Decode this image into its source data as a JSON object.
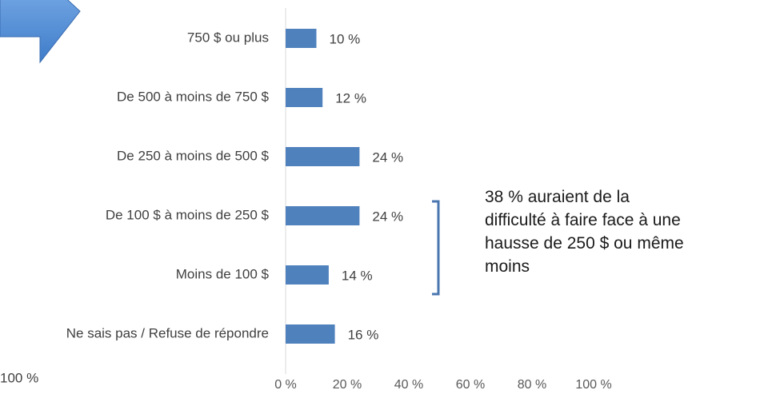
{
  "chart_data": {
    "type": "hbar",
    "categories": [
      "750 $ ou plus",
      "De 500 à moins de 750 $",
      "De 250 à  moins de 500 $",
      "De 100 $ à moins de 250 $",
      "Moins de 100 $",
      "Ne sais pas / Refuse de répondre"
    ],
    "values": [
      10,
      12,
      24,
      24,
      14,
      16
    ],
    "value_labels": [
      "10 %",
      "12 %",
      "24 %",
      "24 %",
      "14 %",
      "16 %"
    ],
    "color": "#4f81bd",
    "xlim": [
      0,
      100
    ],
    "xticks": [
      {
        "value": 0,
        "label": "0 %"
      },
      {
        "value": 20,
        "label": "20 %"
      },
      {
        "value": 40,
        "label": "40 %"
      },
      {
        "value": 60,
        "label": "60 %"
      },
      {
        "value": 80,
        "label": "80 %"
      },
      {
        "value": 100,
        "label": "100 %"
      }
    ],
    "grid": false,
    "annotation": [
      "38 % auraient de la",
      "difficulté à faire face à une",
      "hausse de 250 $ ou même",
      "moins"
    ],
    "stray_label": "100 %"
  }
}
